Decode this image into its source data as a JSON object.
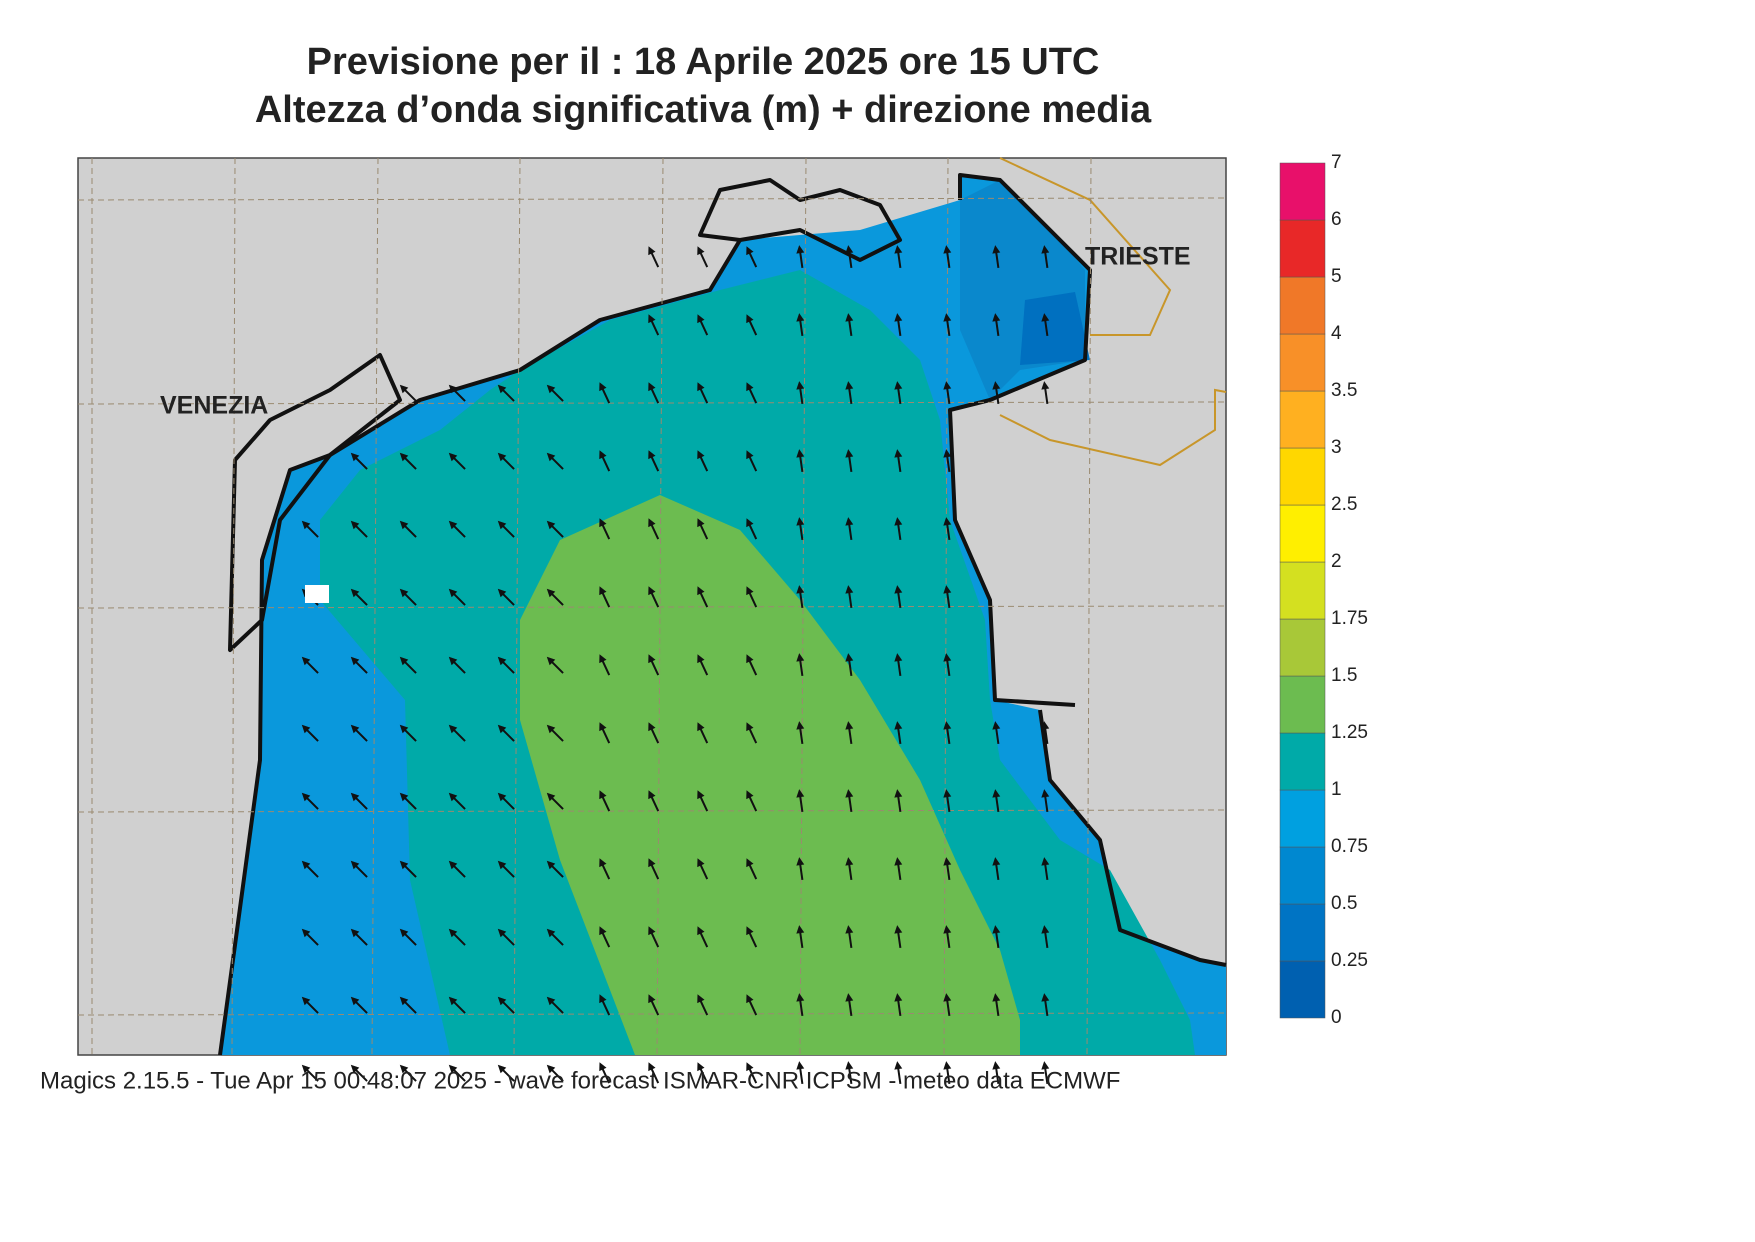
{
  "header": {
    "title": "Previsione per il  :  18   Aprile  2025   ore 15 UTC",
    "subtitle": "Altezza d’onda significativa (m) + direzione media"
  },
  "labels": [
    "VENEZIA",
    "TRIESTE"
  ],
  "legend": {
    "levels": [
      0,
      0.25,
      0.5,
      0.75,
      1,
      1.25,
      1.5,
      1.75,
      2,
      2.5,
      3,
      3.5,
      4,
      5,
      6,
      7
    ],
    "colors": [
      "#0060b0",
      "#0074c4",
      "#0088d0",
      "#00a0e0",
      "#00aaa8",
      "#6cbc50",
      "#a8c838",
      "#d4e020",
      "#ffef00",
      "#ffd700",
      "#ffb020",
      "#f89028",
      "#f07828",
      "#e82828",
      "#e8106a"
    ]
  },
  "footer": "Magics 2.15.5 - Tue Apr 15 00:48:07 2025 - wave forecast  ISMAR-CNR  ICPSM - meteo data   ECMWF"
}
